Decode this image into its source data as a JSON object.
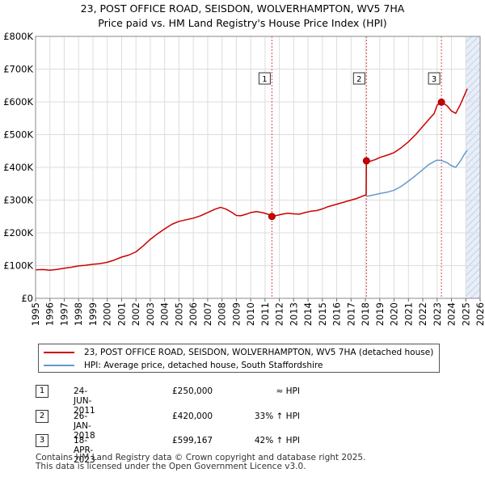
{
  "chart_data": {
    "type": "line",
    "title": "23, POST OFFICE ROAD, SEISDON, WOLVERHAMPTON, WV5 7HA",
    "subtitle": "Price paid vs. HM Land Registry's House Price Index (HPI)",
    "xlim": [
      1995,
      2026
    ],
    "ylim": [
      0,
      800000
    ],
    "x_ticks": [
      "1995",
      "1996",
      "1997",
      "1998",
      "1999",
      "2000",
      "2001",
      "2002",
      "2003",
      "2004",
      "2005",
      "2006",
      "2007",
      "2008",
      "2009",
      "2010",
      "2011",
      "2012",
      "2013",
      "2014",
      "2015",
      "2016",
      "2017",
      "2018",
      "2019",
      "2020",
      "2021",
      "2022",
      "2023",
      "2024",
      "2025",
      "2026"
    ],
    "y_ticks": [
      {
        "value": 0,
        "label": "£0"
      },
      {
        "value": 100000,
        "label": "£100K"
      },
      {
        "value": 200000,
        "label": "£200K"
      },
      {
        "value": 300000,
        "label": "£300K"
      },
      {
        "value": 400000,
        "label": "£400K"
      },
      {
        "value": 500000,
        "label": "£500K"
      },
      {
        "value": 600000,
        "label": "£600K"
      },
      {
        "value": 700000,
        "label": "£700K"
      },
      {
        "value": 800000,
        "label": "£800K"
      }
    ],
    "grid": true,
    "future_shade_from": 2025.0,
    "series": [
      {
        "name": "23, POST OFFICE ROAD, SEISDON, WOLVERHAMPTON, WV5 7HA (detached house)",
        "color": "#cc0000",
        "points": [
          [
            1995.0,
            87000
          ],
          [
            1995.5,
            88000
          ],
          [
            1996.0,
            86000
          ],
          [
            1996.5,
            88500
          ],
          [
            1997.0,
            92000
          ],
          [
            1997.5,
            95000
          ],
          [
            1998.0,
            99000
          ],
          [
            1998.5,
            101000
          ],
          [
            1999.0,
            104000
          ],
          [
            1999.5,
            106000
          ],
          [
            2000.0,
            110000
          ],
          [
            2000.5,
            117000
          ],
          [
            2001.0,
            126000
          ],
          [
            2001.5,
            132000
          ],
          [
            2002.0,
            142000
          ],
          [
            2002.5,
            160000
          ],
          [
            2003.0,
            180000
          ],
          [
            2003.5,
            197000
          ],
          [
            2004.0,
            212000
          ],
          [
            2004.5,
            226000
          ],
          [
            2005.0,
            235000
          ],
          [
            2005.5,
            240000
          ],
          [
            2006.0,
            245000
          ],
          [
            2006.5,
            252000
          ],
          [
            2007.0,
            262000
          ],
          [
            2007.5,
            272000
          ],
          [
            2007.9,
            278000
          ],
          [
            2008.3,
            272000
          ],
          [
            2008.7,
            262000
          ],
          [
            2009.0,
            253000
          ],
          [
            2009.3,
            252000
          ],
          [
            2009.7,
            257000
          ],
          [
            2010.0,
            262000
          ],
          [
            2010.4,
            265000
          ],
          [
            2010.8,
            262000
          ],
          [
            2011.2,
            257000
          ],
          [
            2011.48,
            250000
          ],
          [
            2011.8,
            253000
          ],
          [
            2012.2,
            257000
          ],
          [
            2012.6,
            260000
          ],
          [
            2013.0,
            258000
          ],
          [
            2013.4,
            257000
          ],
          [
            2013.8,
            262000
          ],
          [
            2014.2,
            266000
          ],
          [
            2014.6,
            268000
          ],
          [
            2015.0,
            273000
          ],
          [
            2015.4,
            280000
          ],
          [
            2015.8,
            285000
          ],
          [
            2016.2,
            290000
          ],
          [
            2016.6,
            295000
          ],
          [
            2017.0,
            300000
          ],
          [
            2017.4,
            305000
          ],
          [
            2017.8,
            312000
          ],
          [
            2018.05,
            316000
          ],
          [
            2018.07,
            420000
          ],
          [
            2018.3,
            418000
          ],
          [
            2018.7,
            424000
          ],
          [
            2019.0,
            430000
          ],
          [
            2019.5,
            437000
          ],
          [
            2020.0,
            445000
          ],
          [
            2020.5,
            460000
          ],
          [
            2021.0,
            478000
          ],
          [
            2021.5,
            500000
          ],
          [
            2022.0,
            525000
          ],
          [
            2022.4,
            545000
          ],
          [
            2022.8,
            565000
          ],
          [
            2023.0,
            590000
          ],
          [
            2023.3,
            599167
          ],
          [
            2023.7,
            588000
          ],
          [
            2024.0,
            572000
          ],
          [
            2024.3,
            565000
          ],
          [
            2024.6,
            590000
          ],
          [
            2024.9,
            620000
          ],
          [
            2025.1,
            640000
          ]
        ]
      },
      {
        "name": "HPI: Average price, detached house, South Staffordshire",
        "color": "#6699cc",
        "points": [
          [
            2018.07,
            311000
          ],
          [
            2018.5,
            315000
          ],
          [
            2019.0,
            320000
          ],
          [
            2019.5,
            324000
          ],
          [
            2020.0,
            330000
          ],
          [
            2020.5,
            342000
          ],
          [
            2021.0,
            358000
          ],
          [
            2021.5,
            375000
          ],
          [
            2022.0,
            393000
          ],
          [
            2022.4,
            408000
          ],
          [
            2022.8,
            418000
          ],
          [
            2023.0,
            422000
          ],
          [
            2023.3,
            421000
          ],
          [
            2023.7,
            414000
          ],
          [
            2024.0,
            405000
          ],
          [
            2024.3,
            400000
          ],
          [
            2024.6,
            418000
          ],
          [
            2024.9,
            440000
          ],
          [
            2025.1,
            452000
          ]
        ]
      }
    ],
    "sales": [
      {
        "num": "1",
        "x": 2011.48,
        "price": 250000
      },
      {
        "num": "2",
        "x": 2018.07,
        "price": 420000
      },
      {
        "num": "3",
        "x": 2023.3,
        "price": 599167
      }
    ]
  },
  "legend": {
    "property": "23, POST OFFICE ROAD, SEISDON, WOLVERHAMPTON, WV5 7HA (detached house)",
    "hpi": "HPI: Average price, detached house, South Staffordshire"
  },
  "transactions": [
    {
      "num": "1",
      "date": "24-JUN-2011",
      "price": "£250,000",
      "rel": "≈ HPI"
    },
    {
      "num": "2",
      "date": "26-JAN-2018",
      "price": "£420,000",
      "rel": "33% ↑ HPI"
    },
    {
      "num": "3",
      "date": "18-APR-2023",
      "price": "£599,167",
      "rel": "42% ↑ HPI"
    }
  ],
  "footer": {
    "line1": "Contains HM Land Registry data © Crown copyright and database right 2025.",
    "line2": "This data is licensed under the Open Government Licence v3.0."
  }
}
